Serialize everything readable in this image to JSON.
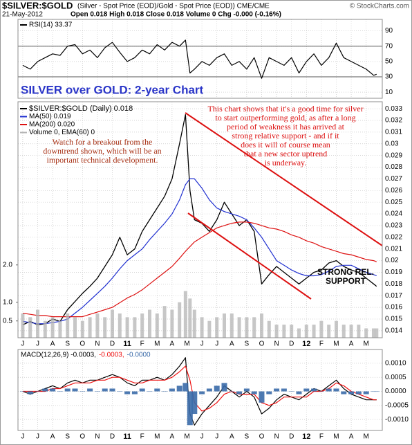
{
  "header": {
    "symbol": "$SILVER:$GOLD",
    "description": "(Silver - Spot Price (EOD)/Gold - Spot Price (EOD)) CME/CME",
    "watermark": "© StockCharts.com",
    "date": "21-May-2012",
    "ohlc": "Open 0.018 High 0.018 Close 0.018 Volume 0 Chg -0.000 (-0.16%)"
  },
  "chart_data": [
    {
      "type": "line",
      "x": [
        0,
        0.5,
        1,
        1.5,
        2,
        2.5,
        3,
        3.5,
        4,
        4.5,
        5,
        5.5,
        6,
        6.5,
        7,
        7.5,
        8,
        8.5,
        9,
        9.5,
        10,
        10.5,
        10.9,
        11.2,
        11.5,
        12,
        12.5,
        13,
        13.5,
        14,
        14.5,
        15,
        15.5,
        16,
        16.5,
        17,
        17.5,
        18,
        18.5,
        19,
        19.5,
        20,
        20.5,
        21,
        21.5,
        22,
        22.5,
        23,
        23.5,
        23.7
      ],
      "xlim": [
        -0.32,
        24.08
      ],
      "ylim": [
        2,
        105
      ],
      "yticks": [
        10,
        30,
        50,
        70,
        90
      ],
      "reference_lines": [
        70,
        30
      ],
      "grid": true,
      "series": [
        {
          "name": "RSI(14) 33.37",
          "color": "#000000",
          "kind": "line",
          "values": [
            45,
            40,
            50,
            55,
            60,
            58,
            70,
            72,
            60,
            65,
            55,
            68,
            75,
            62,
            50,
            55,
            65,
            60,
            72,
            65,
            75,
            70,
            78,
            35,
            40,
            50,
            45,
            55,
            60,
            45,
            50,
            40,
            55,
            28,
            55,
            50,
            45,
            55,
            35,
            50,
            60,
            45,
            55,
            74,
            55,
            50,
            45,
            40,
            32,
            33.37
          ]
        }
      ]
    },
    {
      "type": "line",
      "title": "SILVER over GOLD: 2-year Chart",
      "x": [
        0,
        0.5,
        1,
        1.5,
        2,
        2.5,
        3,
        3.5,
        4,
        4.5,
        5,
        5.5,
        6,
        6.5,
        7,
        7.5,
        8,
        8.5,
        9,
        9.5,
        10,
        10.5,
        10.9,
        11.2,
        11.5,
        12,
        12.5,
        13,
        13.5,
        14,
        14.5,
        15,
        15.5,
        16,
        16.5,
        17,
        17.5,
        18,
        18.5,
        19,
        19.5,
        20,
        20.5,
        21,
        21.5,
        22,
        22.5,
        23,
        23.5,
        23.7
      ],
      "xlim": [
        -0.32,
        24.08
      ],
      "xticks": [
        {
          "value": 0,
          "label": "J"
        },
        {
          "value": 1,
          "label": "J"
        },
        {
          "value": 2,
          "label": "A"
        },
        {
          "value": 3,
          "label": "S"
        },
        {
          "value": 4,
          "label": "O"
        },
        {
          "value": 5,
          "label": "N"
        },
        {
          "value": 6,
          "label": "D"
        },
        {
          "value": 7,
          "label": "11"
        },
        {
          "value": 8,
          "label": "F"
        },
        {
          "value": 9,
          "label": "M"
        },
        {
          "value": 10,
          "label": "A"
        },
        {
          "value": 11,
          "label": "M"
        },
        {
          "value": 12,
          "label": "J"
        },
        {
          "value": 13,
          "label": "J"
        },
        {
          "value": 14,
          "label": "A"
        },
        {
          "value": 15,
          "label": "S"
        },
        {
          "value": 16,
          "label": "O"
        },
        {
          "value": 17,
          "label": "N"
        },
        {
          "value": 18,
          "label": "D"
        },
        {
          "value": 19,
          "label": "12"
        },
        {
          "value": 20,
          "label": "F"
        },
        {
          "value": 21,
          "label": "M"
        },
        {
          "value": 22,
          "label": "A"
        },
        {
          "value": 23,
          "label": "M"
        }
      ],
      "ylim": [
        0.0134,
        0.0336
      ],
      "yticks": [
        0.014,
        0.015,
        0.016,
        0.017,
        0.018,
        0.019,
        0.02,
        0.021,
        0.022,
        0.023,
        0.024,
        0.025,
        0.026,
        0.027,
        0.028,
        0.029,
        0.03,
        0.031,
        0.032,
        0.033
      ],
      "y2lim": [
        0.05,
        6.37
      ],
      "y2ticks": [
        {
          "value": 2,
          "label": "2.0"
        },
        {
          "value": 1,
          "label": "1.0"
        },
        0.5
      ],
      "grid": true,
      "series": [
        {
          "name": "$SILVER:$GOLD (Daily) 0.018",
          "color": "#000000",
          "kind": "line",
          "values": [
            0.0145,
            0.0148,
            0.0145,
            0.0146,
            0.015,
            0.0148,
            0.0158,
            0.0165,
            0.0172,
            0.0178,
            0.0185,
            0.0195,
            0.0205,
            0.022,
            0.0205,
            0.021,
            0.0225,
            0.0235,
            0.0245,
            0.0255,
            0.027,
            0.03,
            0.0325,
            0.026,
            0.0235,
            0.0232,
            0.0225,
            0.0235,
            0.025,
            0.024,
            0.023,
            0.0235,
            0.0225,
            0.018,
            0.0188,
            0.0195,
            0.019,
            0.0185,
            0.018,
            0.0185,
            0.019,
            0.0192,
            0.0198,
            0.02,
            0.0195,
            0.0192,
            0.019,
            0.0185,
            0.018,
            0.0178
          ]
        },
        {
          "name": "MA(50) 0.019",
          "color": "#1f2fd0",
          "kind": "line",
          "values": [
            0.0148,
            0.0147,
            0.0146,
            0.0146,
            0.0147,
            0.0148,
            0.015,
            0.0155,
            0.016,
            0.0166,
            0.0172,
            0.0178,
            0.0185,
            0.0193,
            0.02,
            0.0205,
            0.021,
            0.0218,
            0.0225,
            0.0232,
            0.024,
            0.0252,
            0.0265,
            0.027,
            0.027,
            0.0262,
            0.0252,
            0.0245,
            0.0242,
            0.024,
            0.0238,
            0.0235,
            0.0228,
            0.022,
            0.021,
            0.02,
            0.0196,
            0.0192,
            0.0189,
            0.0187,
            0.0187,
            0.0188,
            0.0191,
            0.0195,
            0.0196,
            0.0196,
            0.0193,
            0.019,
            0.0188,
            0.0187
          ]
        },
        {
          "name": "MA(200) 0.020",
          "color": "#dd1111",
          "kind": "line",
          "values": [
            0.0155,
            0.0154,
            0.0153,
            0.0153,
            0.0152,
            0.0152,
            0.0152,
            0.0152,
            0.0152,
            0.0154,
            0.0156,
            0.0158,
            0.016,
            0.0164,
            0.0168,
            0.0171,
            0.0175,
            0.018,
            0.0185,
            0.019,
            0.0195,
            0.0202,
            0.0208,
            0.0212,
            0.0216,
            0.022,
            0.0224,
            0.0228,
            0.023,
            0.0232,
            0.0233,
            0.0233,
            0.0232,
            0.023,
            0.0228,
            0.0227,
            0.0225,
            0.0222,
            0.022,
            0.0217,
            0.0215,
            0.0212,
            0.021,
            0.0208,
            0.0206,
            0.0205,
            0.0203,
            0.0201,
            0.02,
            0.0199
          ]
        },
        {
          "name": "Volume 0, EMA(60) 0",
          "color": "#b4b4b4",
          "kind": "bar",
          "axis": "y2",
          "values": [
            0.7,
            0.6,
            0.8,
            0.5,
            0.6,
            0.5,
            0.7,
            0.6,
            0.5,
            0.6,
            0.7,
            0.6,
            0.8,
            0.7,
            0.6,
            0.6,
            0.7,
            0.8,
            0.7,
            0.9,
            0.8,
            1.0,
            1.3,
            1.1,
            0.8,
            0.6,
            0.5,
            0.6,
            0.7,
            0.7,
            0.6,
            0.6,
            0.6,
            0.7,
            0.5,
            0.4,
            0.4,
            0.4,
            0.3,
            0.4,
            0.4,
            0.5,
            0.4,
            0.5,
            0.4,
            0.4,
            0.4,
            0.3,
            0.3,
            0.3
          ]
        }
      ],
      "annotations": [
        {
          "lines": [
            "Watch for a breakout from the",
            "downtrend shown, which will be an",
            "important technical development."
          ],
          "color": "#a83216"
        },
        {
          "lines": [
            "This chart shows that it's a good time for silver",
            "to start outperforming gold, as after a long",
            "period of weakness it has arrived at",
            "strong relative support - and if it",
            "does it will of course mean",
            "that a new sector uptrend",
            "is underway."
          ],
          "color": "#dd1111"
        },
        {
          "lines": [
            "STRONG REL.",
            "SUPPORT"
          ],
          "color": "#000000"
        }
      ]
    },
    {
      "type": "line",
      "x": [
        0,
        0.5,
        1,
        1.5,
        2,
        2.5,
        3,
        3.5,
        4,
        4.5,
        5,
        5.5,
        6,
        6.5,
        7,
        7.5,
        8,
        8.5,
        9,
        9.5,
        10,
        10.5,
        10.9,
        11.2,
        11.5,
        12,
        12.5,
        13,
        13.5,
        14,
        14.5,
        15,
        15.5,
        16,
        16.5,
        17,
        17.5,
        18,
        18.5,
        19,
        19.5,
        20,
        20.5,
        21,
        21.5,
        22,
        22.5,
        23,
        23.5,
        23.7
      ],
      "xlim": [
        -0.32,
        24.08
      ],
      "xticks": [
        {
          "value": 0,
          "label": "J"
        },
        {
          "value": 1,
          "label": "J"
        },
        {
          "value": 2,
          "label": "A"
        },
        {
          "value": 3,
          "label": "S"
        },
        {
          "value": 4,
          "label": "O"
        },
        {
          "value": 5,
          "label": "N"
        },
        {
          "value": 6,
          "label": "D"
        },
        {
          "value": 7,
          "label": "11"
        },
        {
          "value": 8,
          "label": "F"
        },
        {
          "value": 9,
          "label": "M"
        },
        {
          "value": 10,
          "label": "A"
        },
        {
          "value": 11,
          "label": "M"
        },
        {
          "value": 12,
          "label": "J"
        },
        {
          "value": 13,
          "label": "J"
        },
        {
          "value": 14,
          "label": "A"
        },
        {
          "value": 15,
          "label": "S"
        },
        {
          "value": 16,
          "label": "O"
        },
        {
          "value": 17,
          "label": "N"
        },
        {
          "value": 18,
          "label": "D"
        },
        {
          "value": 19,
          "label": "12"
        },
        {
          "value": 20,
          "label": "F"
        },
        {
          "value": 21,
          "label": "M"
        },
        {
          "value": 22,
          "label": "A"
        },
        {
          "value": 23,
          "label": "M"
        }
      ],
      "ylim": [
        -0.00139,
        0.00149
      ],
      "yticks": [
        {
          "value": 0.001,
          "label": "0.0010"
        },
        0.0005,
        {
          "value": 0,
          "label": "0.0000"
        },
        -0.0005,
        {
          "value": -0.001,
          "label": "-0.0010"
        }
      ],
      "grid": true,
      "series": [
        {
          "name": "MACD(12,26,9) -0.0003,",
          "color": "#000000",
          "kind": "line",
          "values": [
            0,
            -0.0001,
            0,
            0.0001,
            0.0002,
            0.0001,
            0.0003,
            0.0004,
            0.0003,
            0.0004,
            0.0004,
            0.0005,
            0.0006,
            0.0005,
            0.0003,
            0.0002,
            0.0004,
            0.0004,
            0.0005,
            0.0004,
            0.0006,
            0.0009,
            0.0012,
            -0.0008,
            -0.0012,
            -0.0008,
            -0.0005,
            -0.0002,
            0.0002,
            0,
            -0.0002,
            0,
            -0.0002,
            -0.0008,
            -0.0006,
            -0.0003,
            -0.0001,
            -0.0002,
            -0.0003,
            -0.0001,
            0.0001,
            0,
            0.0002,
            0.0004,
            0.0001,
            -0.0001,
            -0.0002,
            -0.0003,
            -0.0003,
            -0.0003
          ]
        },
        {
          "name": "-0.0003,",
          "color": "#ee1111",
          "kind": "line",
          "values": [
            0,
            0,
            0,
            0,
            0.0001,
            0.0001,
            0.0002,
            0.0003,
            0.0003,
            0.0003,
            0.0004,
            0.0004,
            0.0005,
            0.0005,
            0.0004,
            0.0003,
            0.0003,
            0.0004,
            0.0004,
            0.0004,
            0.0005,
            0.0007,
            0.0009,
            0.0004,
            -0.0004,
            -0.0007,
            -0.0006,
            -0.0004,
            -0.0001,
            0,
            -0.0001,
            -0.0001,
            -0.0001,
            -0.0004,
            -0.0005,
            -0.0004,
            -0.0002,
            -0.0002,
            -0.0002,
            -0.0002,
            0,
            0,
            0.0001,
            0.0003,
            0.0002,
            0,
            -0.0001,
            -0.0002,
            -0.0003,
            -0.0003
          ]
        },
        {
          "name": "-0.0000",
          "color": "#3a6aa8",
          "kind": "bar",
          "values": [
            0,
            -0.0001,
            0,
            0.0001,
            0.0001,
            0,
            0.0001,
            0.0001,
            0,
            0.0001,
            0,
            0.0001,
            0.0001,
            0,
            -0.0001,
            -0.0001,
            0.0001,
            0,
            0.0001,
            0,
            0.0001,
            0.0002,
            0.0003,
            -0.0012,
            -0.0008,
            -0.0001,
            0.0001,
            0.0002,
            0.0003,
            0,
            -0.0001,
            0.0001,
            -0.0001,
            -0.0004,
            -0.0001,
            0.0001,
            0.0001,
            0,
            -0.0001,
            0.0001,
            0.0001,
            0,
            0.0001,
            0.0001,
            -0.0001,
            -0.0001,
            -0.0001,
            -0.0001,
            0,
            0
          ]
        }
      ]
    }
  ]
}
